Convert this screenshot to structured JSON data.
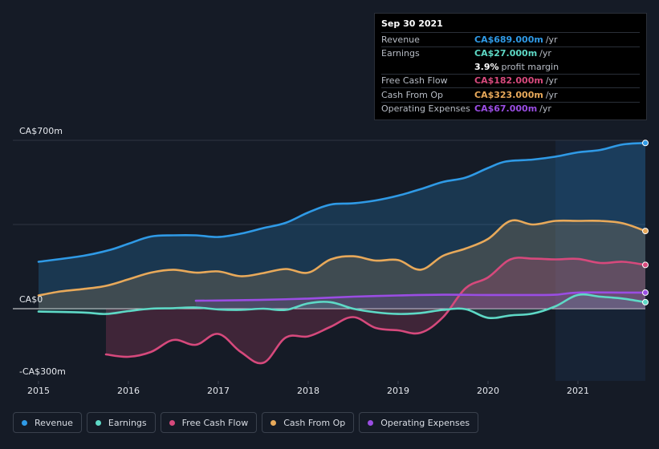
{
  "chart_data": {
    "type": "area",
    "title": "",
    "y_unit": "CA$",
    "ylim": [
      -300,
      700
    ],
    "y_tick_labels": [
      "CA$700m",
      "CA$0",
      "-CA$300m"
    ],
    "x_tick_labels": [
      "2015",
      "2016",
      "2017",
      "2018",
      "2019",
      "2020",
      "2021"
    ],
    "x_range": [
      2015.0,
      2021.75
    ],
    "forecast_start": 2020.75,
    "series": [
      {
        "name": "Revenue",
        "color": "#2f9ae6",
        "x": [
          2015.0,
          2015.5,
          2015.8,
          2016.0,
          2016.25,
          2016.5,
          2016.75,
          2017.0,
          2017.25,
          2017.5,
          2017.75,
          2018.0,
          2018.25,
          2018.5,
          2018.75,
          2019.0,
          2019.25,
          2019.5,
          2019.75,
          2020.0,
          2020.2,
          2020.5,
          2020.75,
          2021.0,
          2021.25,
          2021.5,
          2021.75
        ],
        "values": [
          195,
          220,
          245,
          270,
          300,
          305,
          305,
          298,
          312,
          335,
          357,
          400,
          433,
          438,
          450,
          470,
          497,
          527,
          545,
          585,
          612,
          620,
          632,
          650,
          660,
          683,
          689
        ]
      },
      {
        "name": "Earnings",
        "color": "#5ed9c6",
        "x": [
          2015.0,
          2015.5,
          2015.75,
          2016.0,
          2016.25,
          2016.5,
          2016.75,
          2017.0,
          2017.25,
          2017.5,
          2017.75,
          2018.0,
          2018.25,
          2018.5,
          2018.75,
          2019.0,
          2019.25,
          2019.5,
          2019.75,
          2020.0,
          2020.25,
          2020.5,
          2020.75,
          2021.0,
          2021.25,
          2021.5,
          2021.75
        ],
        "values": [
          -12,
          -16,
          -22,
          -10,
          0,
          2,
          5,
          -3,
          -5,
          0,
          -5,
          22,
          27,
          0,
          -15,
          -22,
          -18,
          -5,
          -2,
          -38,
          -28,
          -20,
          10,
          57,
          50,
          42,
          27
        ]
      },
      {
        "name": "Free Cash Flow",
        "color": "#d6497c",
        "x": [
          2015.75,
          2016.0,
          2016.25,
          2016.5,
          2016.75,
          2017.0,
          2017.25,
          2017.5,
          2017.75,
          2018.0,
          2018.25,
          2018.5,
          2018.75,
          2019.0,
          2019.25,
          2019.5,
          2019.75,
          2020.0,
          2020.25,
          2020.5,
          2020.75,
          2021.0,
          2021.25,
          2021.5,
          2021.75
        ],
        "values": [
          -190,
          -200,
          -180,
          -130,
          -150,
          -105,
          -180,
          -225,
          -120,
          -115,
          -75,
          -35,
          -80,
          -90,
          -100,
          -35,
          85,
          130,
          205,
          208,
          205,
          207,
          190,
          195,
          182
        ]
      },
      {
        "name": "Cash From Op",
        "color": "#e8a95a",
        "x": [
          2015.0,
          2015.25,
          2015.5,
          2015.75,
          2016.0,
          2016.25,
          2016.5,
          2016.75,
          2017.0,
          2017.25,
          2017.5,
          2017.75,
          2018.0,
          2018.25,
          2018.5,
          2018.75,
          2019.0,
          2019.25,
          2019.5,
          2019.75,
          2020.0,
          2020.25,
          2020.5,
          2020.75,
          2021.0,
          2021.25,
          2021.5,
          2021.75
        ],
        "values": [
          55,
          72,
          82,
          95,
          122,
          150,
          162,
          150,
          155,
          135,
          148,
          165,
          150,
          205,
          218,
          200,
          202,
          162,
          220,
          250,
          290,
          365,
          350,
          365,
          365,
          365,
          355,
          323
        ]
      },
      {
        "name": "Operating Expenses",
        "color": "#9a4de3",
        "x": [
          2016.75,
          2017.0,
          2017.5,
          2018.0,
          2018.5,
          2019.0,
          2019.5,
          2020.0,
          2020.5,
          2020.75,
          2021.0,
          2021.5,
          2021.75
        ],
        "values": [
          33,
          34,
          37,
          42,
          50,
          55,
          58,
          57,
          57,
          58,
          67,
          67,
          67
        ]
      }
    ]
  },
  "tooltip": {
    "date": "Sep 30 2021",
    "rows": [
      {
        "label": "Revenue",
        "value": "CA$689.000m",
        "unit": "/yr",
        "color": "#2f9ae6"
      },
      {
        "label": "Earnings",
        "value": "CA$27.000m",
        "unit": "/yr",
        "color": "#5ed9c6"
      },
      {
        "label": "",
        "value": "3.9%",
        "unit": "profit margin",
        "color": "#ffffff"
      },
      {
        "label": "Free Cash Flow",
        "value": "CA$182.000m",
        "unit": "/yr",
        "color": "#d6497c"
      },
      {
        "label": "Cash From Op",
        "value": "CA$323.000m",
        "unit": "/yr",
        "color": "#e8a95a"
      },
      {
        "label": "Operating Expenses",
        "value": "CA$67.000m",
        "unit": "/yr",
        "color": "#9a4de3"
      }
    ]
  },
  "legend": [
    {
      "label": "Revenue",
      "color": "#2f9ae6"
    },
    {
      "label": "Earnings",
      "color": "#5ed9c6"
    },
    {
      "label": "Free Cash Flow",
      "color": "#d6497c"
    },
    {
      "label": "Cash From Op",
      "color": "#e8a95a"
    },
    {
      "label": "Operating Expenses",
      "color": "#9a4de3"
    }
  ]
}
